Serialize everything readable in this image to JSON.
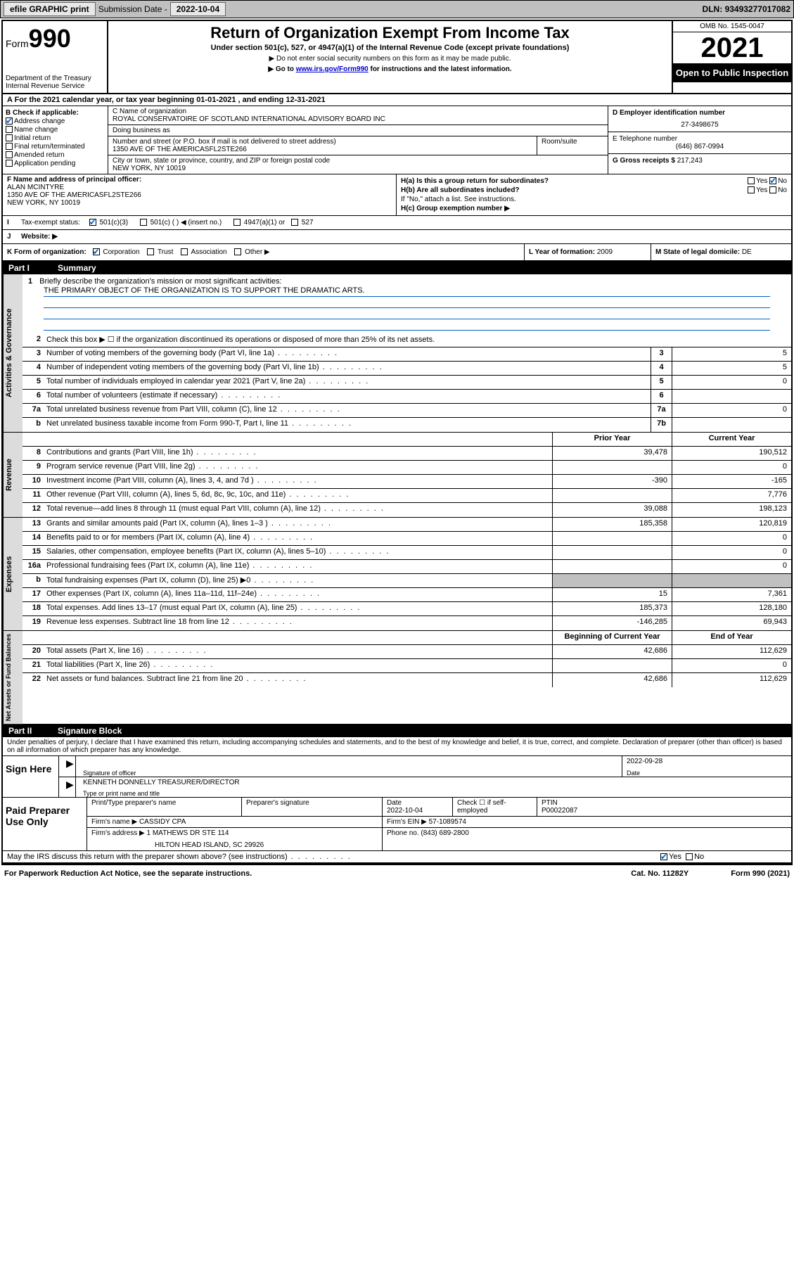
{
  "topbar": {
    "efile": "efile GRAPHIC print",
    "sub_label": "Submission Date -",
    "sub_date": "2022-10-04",
    "dln_label": "DLN:",
    "dln": "93493277017082"
  },
  "header": {
    "form_word": "Form",
    "form_num": "990",
    "dept": "Department of the Treasury",
    "irs": "Internal Revenue Service",
    "title": "Return of Organization Exempt From Income Tax",
    "subtitle": "Under section 501(c), 527, or 4947(a)(1) of the Internal Revenue Code (except private foundations)",
    "note1": "▶ Do not enter social security numbers on this form as it may be made public.",
    "note2_pre": "▶ Go to ",
    "note2_link": "www.irs.gov/Form990",
    "note2_post": " for instructions and the latest information.",
    "omb": "OMB No. 1545-0047",
    "year": "2021",
    "inspection": "Open to Public Inspection"
  },
  "row_a": "A For the 2021 calendar year, or tax year beginning 01-01-2021   , and ending 12-31-2021",
  "b": {
    "label": "B Check if applicable:",
    "items": [
      {
        "label": "Address change",
        "checked": true
      },
      {
        "label": "Name change",
        "checked": false
      },
      {
        "label": "Initial return",
        "checked": false
      },
      {
        "label": "Final return/terminated",
        "checked": false
      },
      {
        "label": "Amended return",
        "checked": false
      },
      {
        "label": "Application pending",
        "checked": false
      }
    ]
  },
  "c": {
    "name_label": "C Name of organization",
    "name": "ROYAL CONSERVATOIRE OF SCOTLAND INTERNATIONAL ADVISORY BOARD INC",
    "dba_label": "Doing business as",
    "dba": "",
    "addr_label": "Number and street (or P.O. box if mail is not delivered to street address)",
    "addr": "1350 AVE OF THE AMERICASFL2STE266",
    "suite_label": "Room/suite",
    "city_label": "City or town, state or province, country, and ZIP or foreign postal code",
    "city": "NEW YORK, NY  10019"
  },
  "d": {
    "ein_label": "D Employer identification number",
    "ein": "27-3498675",
    "phone_label": "E Telephone number",
    "phone": "(646) 867-0994",
    "gross_label": "G Gross receipts $",
    "gross": "217,243"
  },
  "f": {
    "label": "F  Name and address of principal officer:",
    "name": "ALAN MCINTYRE",
    "addr1": "1350 AVE OF THE AMERICASFL2STE266",
    "addr2": "NEW YORK, NY  10019"
  },
  "h": {
    "a_label": "H(a)  Is this a group return for subordinates?",
    "a_yes": "Yes",
    "a_no": "No",
    "b_label": "H(b)  Are all subordinates included?",
    "b_yes": "Yes",
    "b_no": "No",
    "b_note": "If \"No,\" attach a list. See instructions.",
    "c_label": "H(c)  Group exemption number ▶"
  },
  "i": {
    "label": "Tax-exempt status:",
    "opt1": "501(c)(3)",
    "opt2": "501(c) (  ) ◀ (insert no.)",
    "opt3": "4947(a)(1) or",
    "opt4": "527"
  },
  "j": {
    "label": "Website: ▶",
    "value": ""
  },
  "k": {
    "label": "K Form of organization:",
    "opts": [
      "Corporation",
      "Trust",
      "Association",
      "Other ▶"
    ]
  },
  "l": {
    "label": "L Year of formation:",
    "value": "2009"
  },
  "m": {
    "label": "M State of legal domicile:",
    "value": "DE"
  },
  "part1": {
    "num": "Part I",
    "title": "Summary"
  },
  "mission": {
    "q": "Briefly describe the organization's mission or most significant activities:",
    "text": "THE PRIMARY OBJECT OF THE ORGANIZATION IS TO SUPPORT THE DRAMATIC ARTS."
  },
  "governance": {
    "side": "Activities & Governance",
    "rows": [
      {
        "n": "2",
        "d": "Check this box ▶ ☐  if the organization discontinued its operations or disposed of more than 25% of its net assets.",
        "box": "",
        "v": ""
      },
      {
        "n": "3",
        "d": "Number of voting members of the governing body (Part VI, line 1a)",
        "box": "3",
        "v": "5"
      },
      {
        "n": "4",
        "d": "Number of independent voting members of the governing body (Part VI, line 1b)",
        "box": "4",
        "v": "5"
      },
      {
        "n": "5",
        "d": "Total number of individuals employed in calendar year 2021 (Part V, line 2a)",
        "box": "5",
        "v": "0"
      },
      {
        "n": "6",
        "d": "Total number of volunteers (estimate if necessary)",
        "box": "6",
        "v": ""
      },
      {
        "n": "7a",
        "d": "Total unrelated business revenue from Part VIII, column (C), line 12",
        "box": "7a",
        "v": "0"
      },
      {
        "n": "b",
        "d": "Net unrelated business taxable income from Form 990-T, Part I, line 11",
        "box": "7b",
        "v": ""
      }
    ]
  },
  "revenue": {
    "side": "Revenue",
    "head_prior": "Prior Year",
    "head_current": "Current Year",
    "rows": [
      {
        "n": "8",
        "d": "Contributions and grants (Part VIII, line 1h)",
        "p": "39,478",
        "c": "190,512"
      },
      {
        "n": "9",
        "d": "Program service revenue (Part VIII, line 2g)",
        "p": "",
        "c": "0"
      },
      {
        "n": "10",
        "d": "Investment income (Part VIII, column (A), lines 3, 4, and 7d )",
        "p": "-390",
        "c": "-165"
      },
      {
        "n": "11",
        "d": "Other revenue (Part VIII, column (A), lines 5, 6d, 8c, 9c, 10c, and 11e)",
        "p": "",
        "c": "7,776"
      },
      {
        "n": "12",
        "d": "Total revenue—add lines 8 through 11 (must equal Part VIII, column (A), line 12)",
        "p": "39,088",
        "c": "198,123"
      }
    ]
  },
  "expenses": {
    "side": "Expenses",
    "rows": [
      {
        "n": "13",
        "d": "Grants and similar amounts paid (Part IX, column (A), lines 1–3 )",
        "p": "185,358",
        "c": "120,819"
      },
      {
        "n": "14",
        "d": "Benefits paid to or for members (Part IX, column (A), line 4)",
        "p": "",
        "c": "0"
      },
      {
        "n": "15",
        "d": "Salaries, other compensation, employee benefits (Part IX, column (A), lines 5–10)",
        "p": "",
        "c": "0"
      },
      {
        "n": "16a",
        "d": "Professional fundraising fees (Part IX, column (A), line 11e)",
        "p": "",
        "c": "0"
      },
      {
        "n": "b",
        "d": "Total fundraising expenses (Part IX, column (D), line 25) ▶0",
        "p": "grey",
        "c": "grey"
      },
      {
        "n": "17",
        "d": "Other expenses (Part IX, column (A), lines 11a–11d, 11f–24e)",
        "p": "15",
        "c": "7,361"
      },
      {
        "n": "18",
        "d": "Total expenses. Add lines 13–17 (must equal Part IX, column (A), line 25)",
        "p": "185,373",
        "c": "128,180"
      },
      {
        "n": "19",
        "d": "Revenue less expenses. Subtract line 18 from line 12",
        "p": "-146,285",
        "c": "69,943"
      }
    ]
  },
  "netassets": {
    "side": "Net Assets or Fund Balances",
    "head_begin": "Beginning of Current Year",
    "head_end": "End of Year",
    "rows": [
      {
        "n": "20",
        "d": "Total assets (Part X, line 16)",
        "p": "42,686",
        "c": "112,629"
      },
      {
        "n": "21",
        "d": "Total liabilities (Part X, line 26)",
        "p": "",
        "c": "0"
      },
      {
        "n": "22",
        "d": "Net assets or fund balances. Subtract line 21 from line 20",
        "p": "42,686",
        "c": "112,629"
      }
    ]
  },
  "part2": {
    "num": "Part II",
    "title": "Signature Block"
  },
  "penalty": "Under penalties of perjury, I declare that I have examined this return, including accompanying schedules and statements, and to the best of my knowledge and belief, it is true, correct, and complete. Declaration of preparer (other than officer) is based on all information of which preparer has any knowledge.",
  "sign": {
    "left": "Sign Here",
    "sig_label": "Signature of officer",
    "date_label": "Date",
    "date": "2022-09-28",
    "name": "KENNETH DONNELLY TREASURER/DIRECTOR",
    "name_label": "Type or print name and title"
  },
  "preparer": {
    "left": "Paid Preparer Use Only",
    "h1": "Print/Type preparer's name",
    "h2": "Preparer's signature",
    "h3_label": "Date",
    "h3": "2022-10-04",
    "h4_label": "Check ☐ if self-employed",
    "h5_label": "PTIN",
    "h5": "P00022087",
    "firm_label": "Firm's name    ▶",
    "firm": "CASSIDY CPA",
    "ein_label": "Firm's EIN ▶",
    "ein": "57-1089574",
    "addr_label": "Firm's address ▶",
    "addr1": "1 MATHEWS DR STE 114",
    "addr2": "HILTON HEAD ISLAND, SC  29926",
    "phone_label": "Phone no.",
    "phone": "(843) 689-2800"
  },
  "discuss": {
    "q": "May the IRS discuss this return with the preparer shown above? (see instructions)",
    "yes": "Yes",
    "no": "No"
  },
  "footer": {
    "left": "For Paperwork Reduction Act Notice, see the separate instructions.",
    "mid": "Cat. No. 11282Y",
    "right": "Form 990 (2021)"
  },
  "colors": {
    "link": "#0000cc",
    "check": "#0066cc",
    "grey": "#c0c0c0",
    "side": "#dcdcdc"
  }
}
